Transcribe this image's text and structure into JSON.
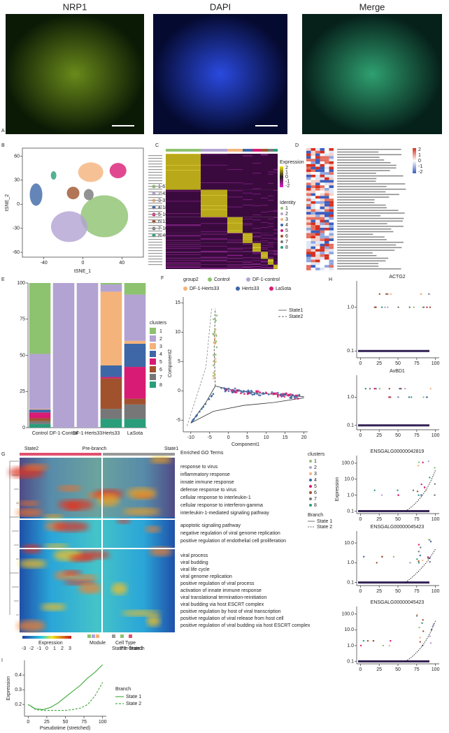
{
  "panel_labels": [
    "A",
    "B",
    "C",
    "D",
    "E",
    "F",
    "G",
    "H",
    "I"
  ],
  "panel_a": {
    "images": [
      "NRP1",
      "DAPI",
      "Merge"
    ]
  },
  "panel_b": {
    "type": "scatter",
    "xlabel": "tSNE_1",
    "ylabel": "tSNE_2",
    "xlim": [
      -62,
      62
    ],
    "ylim": [
      -66,
      70
    ],
    "xticks": [
      -40,
      0,
      40
    ],
    "yticks": [
      -60,
      -30,
      0,
      30,
      60
    ],
    "series": [
      {
        "name": "1-6730 cells",
        "color": "#8dc26f",
        "x": [
          22
        ],
        "y": [
          -15
        ]
      },
      {
        "name": "2-4282 cells",
        "color": "#b3a3d3",
        "x": [
          -14
        ],
        "y": [
          -28
        ]
      },
      {
        "name": "3-3186 cells",
        "color": "#f4b37a",
        "x": [
          8
        ],
        "y": [
          40
        ]
      },
      {
        "name": "4-1811 cells",
        "color": "#3d67a6",
        "x": [
          -48
        ],
        "y": [
          12
        ]
      },
      {
        "name": "5-1694 cells",
        "color": "#d81b74",
        "x": [
          36
        ],
        "y": [
          42
        ]
      },
      {
        "name": "6-1147 cells",
        "color": "#a0522d",
        "x": [
          -10
        ],
        "y": [
          14
        ]
      },
      {
        "name": "7-1036 cells",
        "color": "#777777",
        "x": [
          6
        ],
        "y": [
          12
        ]
      },
      {
        "name": "8-463 cells",
        "color": "#2a9d7b",
        "x": [
          -30
        ],
        "y": [
          36
        ]
      }
    ]
  },
  "panel_c": {
    "legend_title": "Expression",
    "legend_ticks": [
      2,
      1,
      0,
      -1,
      -2
    ],
    "identity_title": "Identity",
    "identities": [
      "1",
      "2",
      "3",
      "4",
      "5",
      "6",
      "7",
      "8"
    ]
  },
  "panel_d": {
    "colorbar_ticks": [
      2,
      1,
      0,
      -1,
      -2
    ]
  },
  "panel_e": {
    "type": "bar",
    "stacked": true,
    "categories": [
      "Control",
      "DF-1-Control",
      "DF-1-Herts33",
      "Herts33",
      "LaSota"
    ],
    "ylim": [
      0,
      100
    ],
    "yticks": [
      0,
      25,
      50,
      75,
      100
    ],
    "legend_title": "clusters",
    "series": [
      {
        "name": "1",
        "color": "#8dc26f",
        "values": [
          49,
          0,
          0,
          1,
          8
        ]
      },
      {
        "name": "2",
        "color": "#b3a3d3",
        "values": [
          38,
          100,
          100,
          5,
          32
        ]
      },
      {
        "name": "3",
        "color": "#f4b37a",
        "values": [
          0.5,
          0,
          0,
          51,
          2
        ]
      },
      {
        "name": "4",
        "color": "#3d67a6",
        "values": [
          2,
          0,
          0,
          8,
          16
        ]
      },
      {
        "name": "5",
        "color": "#d81b74",
        "values": [
          4,
          0,
          0,
          1,
          22
        ]
      },
      {
        "name": "6",
        "color": "#a0522d",
        "values": [
          2,
          0,
          0,
          21,
          4
        ]
      },
      {
        "name": "7",
        "color": "#777777",
        "values": [
          2,
          0,
          0,
          7,
          10
        ]
      },
      {
        "name": "8",
        "color": "#2a9d7b",
        "values": [
          2.5,
          0,
          0,
          6,
          6
        ]
      }
    ]
  },
  "panel_f": {
    "legend_title": "group2",
    "groups": [
      {
        "name": "Control",
        "color": "#8dc26f"
      },
      {
        "name": "DF-1-control",
        "color": "#b3a3d3"
      },
      {
        "name": "DF-1-Herts33",
        "color": "#f4b37a"
      },
      {
        "name": "Herts33",
        "color": "#3d67a6"
      },
      {
        "name": "LaSota",
        "color": "#d81b74"
      }
    ],
    "states": [
      "State1",
      "State2"
    ],
    "xlabel": "Component1",
    "ylabel": "Component2",
    "xlim": [
      -12,
      21
    ],
    "ylim": [
      -7,
      16
    ],
    "xticks": [
      -10,
      -5,
      0,
      5,
      10,
      15,
      20
    ],
    "yticks": [
      -5,
      0,
      5,
      10,
      15
    ]
  },
  "panel_g": {
    "state_labels": [
      "State2",
      "Pre-branch",
      "State1"
    ],
    "go_title": "Enriched GO Terms",
    "go_groups": [
      [
        "response to virus",
        "inflammatory response",
        "innate immune response",
        "defense response to virus",
        "cellular response to interleukin-1",
        "cellular response to interferon-gamma",
        "interleukin-1-mediated signaling pathway"
      ],
      [
        "apoptotic signaling pathway",
        "negative regulation of viral genome replication",
        "positive regulation of endothelial cell proliferation"
      ],
      [
        "viral process",
        "viral budding",
        "viral life cycle",
        "viral genome replication",
        "positive regulation of viral process",
        "activation of innate immune response",
        "viral translational termination-reinitiation",
        "viral budding via host ESCRT complex",
        "positive regulation by host of viral transcription",
        "positive regulation of viral release from host cell",
        "positive regulation of viral budding via host ESCRT complex"
      ]
    ],
    "legend_title": "clusters",
    "clusters": [
      "1",
      "2",
      "3",
      "4",
      "5",
      "6",
      "7",
      "8"
    ],
    "branch_title": "Branch",
    "branches": [
      "State 1",
      "State 2"
    ],
    "bottom_legend": [
      "Expression",
      "Module",
      "Cell Type"
    ],
    "expr_ticks": [
      -3,
      -2,
      -1,
      0,
      1,
      2,
      3
    ]
  },
  "panel_h": {
    "ylabel": "Expression",
    "log_y": true,
    "xlim": [
      -5,
      105
    ],
    "xticks": [
      0,
      25,
      50,
      75,
      100
    ],
    "plots": [
      {
        "title": "ACTG2",
        "ylim": [
          0.07,
          4
        ],
        "yticks": [
          0.1,
          {
            "value": 1,
            "label": "1.0"
          }
        ]
      },
      {
        "title": "AvBD1",
        "ylim": [
          0.07,
          6
        ],
        "yticks": [
          0.1,
          {
            "value": 1,
            "label": "1.0"
          }
        ]
      },
      {
        "title": "ENSGALG00000042819",
        "ylim": [
          0.07,
          300
        ],
        "yticks": [
          0.1,
          {
            "value": 1,
            "label": "1.0"
          },
          {
            "value": 10,
            "label": "10.0"
          },
          {
            "value": 100,
            "label": "100.0"
          }
        ]
      },
      {
        "title": "ENSGALG00000045423",
        "ylim": [
          0.07,
          40
        ],
        "yticks": [
          0.1,
          {
            "value": 1,
            "label": "1.0"
          },
          {
            "value": 10,
            "label": "10.0"
          }
        ]
      },
      {
        "title": "ENSGALG00000045423",
        "ylim": [
          0.07,
          300
        ],
        "yticks": [
          0.1,
          {
            "value": 1,
            "label": "1.0"
          },
          {
            "value": 10,
            "label": "10.0"
          },
          {
            "value": 100,
            "label": "100.0"
          }
        ]
      }
    ]
  },
  "panel_i": {
    "type": "line",
    "xlabel": "Pseudotime (stretched)",
    "ylabel": "Expression",
    "x": [
      0,
      10,
      20,
      30,
      40,
      50,
      60,
      70,
      80,
      90,
      100
    ],
    "xlim": [
      -5,
      105
    ],
    "ylim": [
      0.12,
      0.5
    ],
    "xticks": [
      0,
      25,
      50,
      75,
      100
    ],
    "yticks": [
      0.2,
      0.3,
      0.4
    ],
    "legend_title": "Branch",
    "series": [
      {
        "name": "State 1",
        "color": "#4daf4a",
        "dashed": false,
        "values": [
          0.2,
          0.17,
          0.165,
          0.18,
          0.21,
          0.25,
          0.29,
          0.33,
          0.38,
          0.42,
          0.47
        ]
      },
      {
        "name": "State 2",
        "color": "#4daf4a",
        "dashed": true,
        "values": [
          0.2,
          0.165,
          0.16,
          0.16,
          0.16,
          0.16,
          0.165,
          0.175,
          0.2,
          0.26,
          0.35
        ]
      }
    ]
  }
}
